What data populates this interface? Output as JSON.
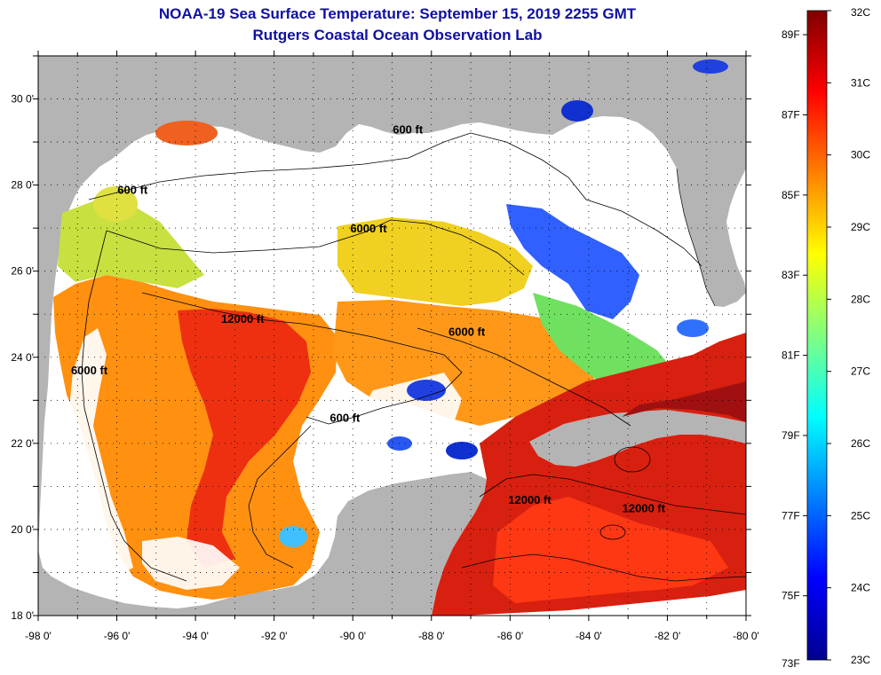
{
  "title_line1": "NOAA-19 Sea Surface Temperature:  September 15, 2019 2255 GMT",
  "title_line2": "Rutgers Coastal Ocean Observation Lab",
  "map": {
    "lon_range": [
      -98,
      -80
    ],
    "lat_range": [
      18,
      31
    ],
    "x_ticks": [
      "-98 0'",
      "-96 0'",
      "-94 0'",
      "-92 0'",
      "-90 0'",
      "-88 0'",
      "-86 0'",
      "-84 0'",
      "-82 0'",
      "-80 0'"
    ],
    "y_ticks": [
      "30 0'",
      "28 0'",
      "26 0'",
      "24 0'",
      "22 0'",
      "20 0'",
      "18 0'"
    ],
    "land_color": "#b4b4b4",
    "cloud_color": "#ffffff",
    "contours": [
      {
        "label": "600 ft",
        "lon": -88.6,
        "lat": 29.2
      },
      {
        "label": "600 ft",
        "lon": -95.6,
        "lat": 27.8
      },
      {
        "label": "6000 ft",
        "lon": -89.6,
        "lat": 26.9
      },
      {
        "label": "12000 ft",
        "lon": -92.8,
        "lat": 24.8
      },
      {
        "label": "6000 ft",
        "lon": -87.1,
        "lat": 24.5
      },
      {
        "label": "6000 ft",
        "lon": -96.7,
        "lat": 23.6
      },
      {
        "label": "600 ft",
        "lon": -90.2,
        "lat": 22.5
      },
      {
        "label": "12000 ft",
        "lon": -85.5,
        "lat": 20.6
      },
      {
        "label": "12000 ft",
        "lon": -82.6,
        "lat": 20.4
      }
    ]
  },
  "colorbar": {
    "celsius": [
      "32C",
      "31C",
      "30C",
      "29C",
      "28C",
      "27C",
      "26C",
      "25C",
      "24C",
      "23C"
    ],
    "fahrenheit": [
      "89F",
      "87F",
      "85F",
      "83F",
      "81F",
      "79F",
      "77F",
      "75F",
      "73F"
    ],
    "c_range": [
      23,
      32
    ],
    "f_range": [
      73.4,
      89.6
    ],
    "stops": [
      "#00008f",
      "#0000ff",
      "#0080ff",
      "#00ffff",
      "#80ff80",
      "#ffff00",
      "#ff8000",
      "#ff0000",
      "#800000"
    ]
  }
}
